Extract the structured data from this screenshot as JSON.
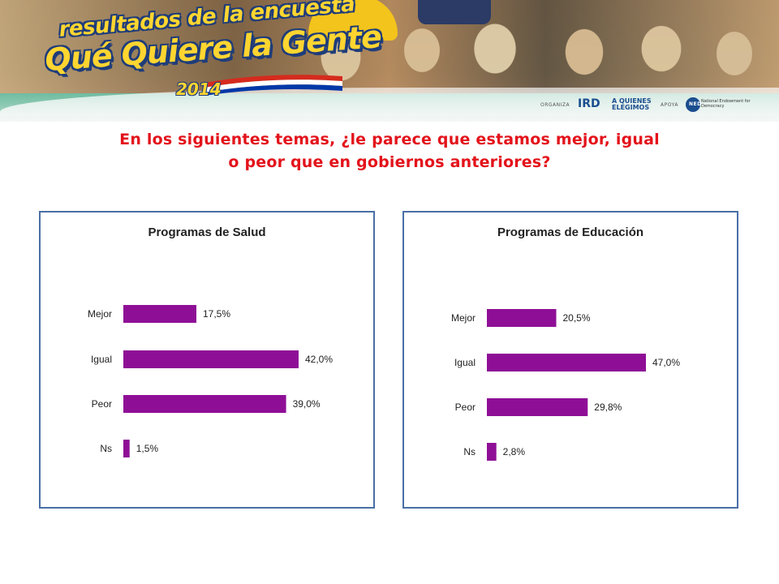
{
  "header": {
    "logo_line1": "resultados de la encuesta",
    "logo_line2": "Qué Quiere la Gente",
    "logo_year": "2014",
    "organiza_label": "ORGANIZA",
    "org_logo": "IRD",
    "org2_logo": "A QUIENES ELEGIMOS",
    "apoya_label": "APOYA",
    "supporter_logo": "NED",
    "supporter_text": "National Endowment for Democracy"
  },
  "question": {
    "line1": "En los siguientes temas, ¿le parece que estamos mejor, igual",
    "line2": "o peor que en gobiernos anteriores?"
  },
  "colors": {
    "bar": "#8e0f96",
    "title": "#e3131b",
    "panel_border": "#4a6fa5"
  },
  "chart_data": [
    {
      "type": "bar",
      "orientation": "horizontal",
      "title": "Programas de Salud",
      "categories": [
        "Mejor",
        "Igual",
        "Peor",
        "Ns"
      ],
      "values": [
        17.5,
        42.0,
        39.0,
        1.5
      ],
      "value_labels": [
        "17,5%",
        "42,0%",
        "39,0%",
        "1,5%"
      ],
      "xlim": [
        0,
        42
      ],
      "grid": false,
      "legend": "none"
    },
    {
      "type": "bar",
      "orientation": "horizontal",
      "title": "Programas de Educación",
      "categories": [
        "Mejor",
        "Igual",
        "Peor",
        "Ns"
      ],
      "values": [
        20.5,
        47.0,
        29.8,
        2.8
      ],
      "value_labels": [
        "20,5%",
        "47,0%",
        "29,8%",
        "2,8%"
      ],
      "xlim": [
        0,
        47
      ],
      "grid": false,
      "legend": "none"
    }
  ]
}
